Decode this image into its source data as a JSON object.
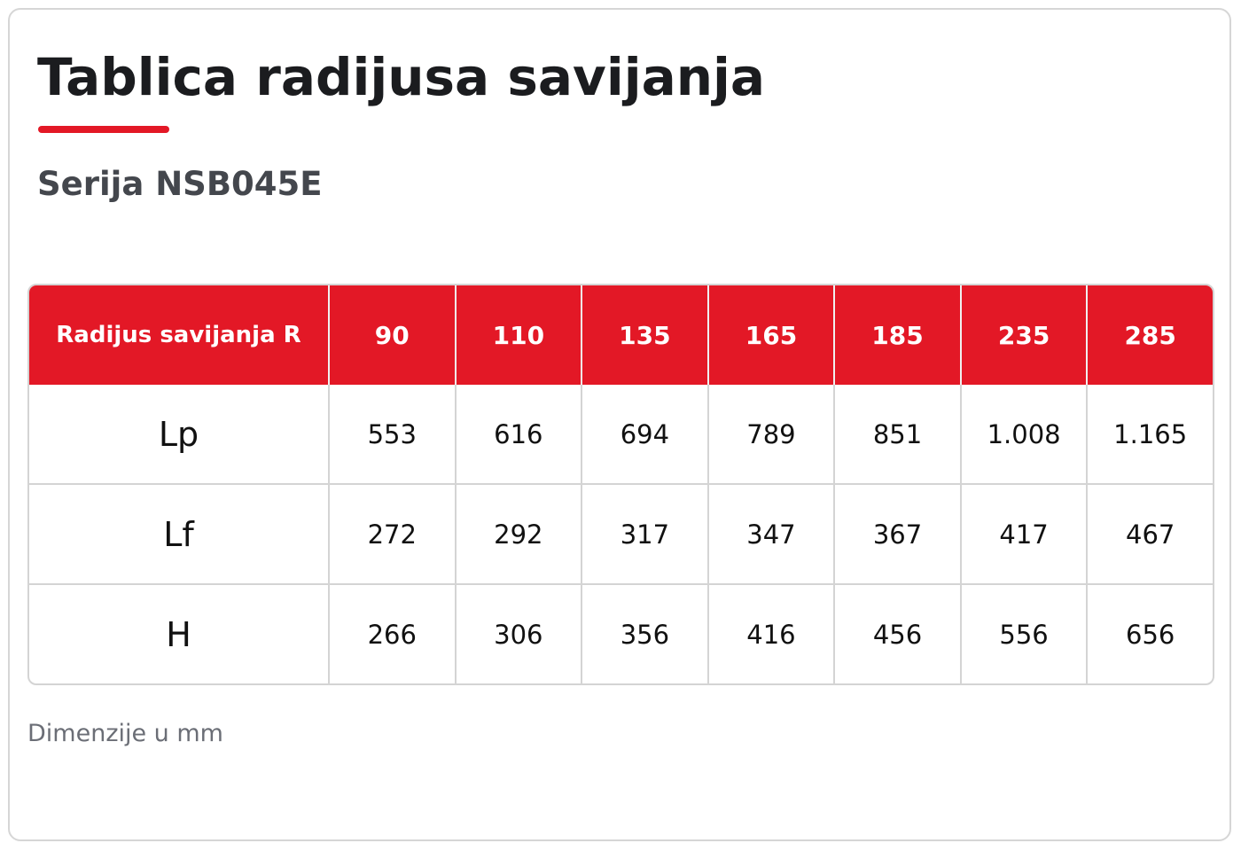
{
  "header": {
    "title": "Tablica radijusa savijanja",
    "subtitle": "Serija NSB045E"
  },
  "table": {
    "columns": [
      "Radijus savijanja R",
      "90",
      "110",
      "135",
      "165",
      "185",
      "235",
      "285"
    ],
    "rows": [
      [
        "Lp",
        "553",
        "616",
        "694",
        "789",
        "851",
        "1.008",
        "1.165"
      ],
      [
        "Lf",
        "272",
        "292",
        "317",
        "347",
        "367",
        "417",
        "467"
      ],
      [
        "H",
        "266",
        "306",
        "356",
        "416",
        "456",
        "556",
        "656"
      ]
    ]
  },
  "footnote": "Dimenzije u mm"
}
